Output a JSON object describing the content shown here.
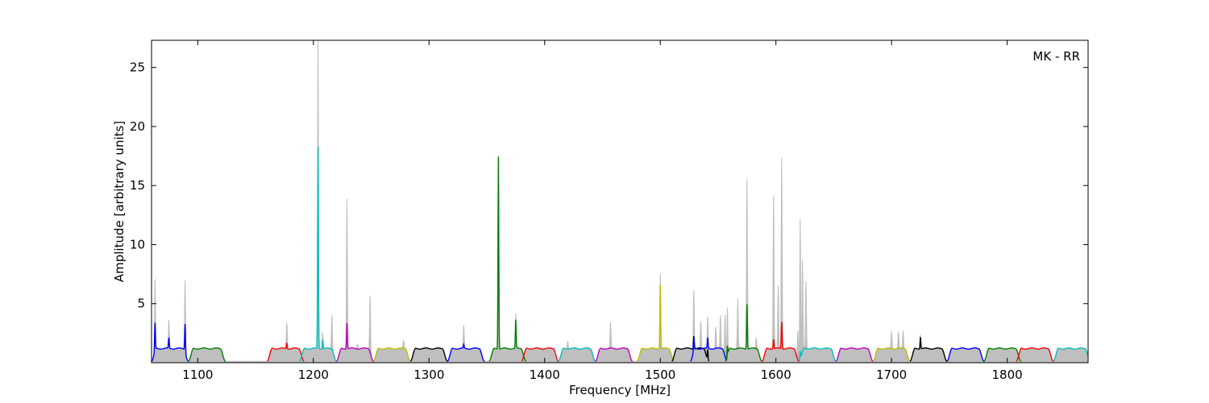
{
  "chart_data": {
    "type": "line",
    "title": "",
    "annotation": "MK - RR",
    "xlabel": "Frequency [MHz]",
    "ylabel": "Amplitude [arbitrary units]",
    "xlim": [
      1060,
      1870
    ],
    "ylim": [
      0,
      27.3
    ],
    "x_ticks": [
      1100,
      1200,
      1300,
      1400,
      1500,
      1600,
      1700,
      1800
    ],
    "y_ticks": [
      5,
      10,
      15,
      20,
      25
    ],
    "grid": false,
    "legend": "none",
    "band_width_mhz": 32,
    "band_starts": [
      1060,
      1092,
      1160,
      1188,
      1220,
      1252,
      1284,
      1316,
      1352,
      1380,
      1412,
      1444,
      1480,
      1510,
      1526,
      1556,
      1588,
      1620,
      1652,
      1684,
      1716,
      1748,
      1780,
      1808,
      1840
    ],
    "band_colors": [
      "#0000ff",
      "#008000",
      "#ff0000",
      "#00bfbf",
      "#bf00bf",
      "#bfbf00",
      "#000000",
      "#0000ff",
      "#008000",
      "#ff0000",
      "#00bfbf",
      "#bf00bf",
      "#bfbf00",
      "#000000",
      "#0000ff",
      "#008000",
      "#ff0000",
      "#00bfbf",
      "#bf00bf",
      "#bfbf00",
      "#000000",
      "#0000ff",
      "#008000",
      "#ff0000",
      "#00bfbf"
    ],
    "baseline_level": 1.2,
    "gray_raw_peaks": [
      {
        "x": 1063,
        "y": 7.3
      },
      {
        "x": 1075,
        "y": 3.6
      },
      {
        "x": 1089,
        "y": 7.3
      },
      {
        "x": 1177,
        "y": 3.4
      },
      {
        "x": 1204,
        "y": 27.3
      },
      {
        "x": 1208,
        "y": 2.6
      },
      {
        "x": 1216,
        "y": 4.1
      },
      {
        "x": 1229,
        "y": 13.9
      },
      {
        "x": 1238,
        "y": 1.6
      },
      {
        "x": 1249,
        "y": 6.0
      },
      {
        "x": 1278,
        "y": 1.9
      },
      {
        "x": 1330,
        "y": 3.1
      },
      {
        "x": 1360,
        "y": 17.6
      },
      {
        "x": 1375,
        "y": 4.1
      },
      {
        "x": 1420,
        "y": 1.9
      },
      {
        "x": 1457,
        "y": 3.4
      },
      {
        "x": 1500,
        "y": 7.6
      },
      {
        "x": 1529,
        "y": 6.2
      },
      {
        "x": 1535,
        "y": 3.5
      },
      {
        "x": 1541,
        "y": 3.9
      },
      {
        "x": 1548,
        "y": 3.0
      },
      {
        "x": 1552,
        "y": 4.0
      },
      {
        "x": 1556,
        "y": 4.7
      },
      {
        "x": 1558,
        "y": 5.2
      },
      {
        "x": 1567,
        "y": 5.4
      },
      {
        "x": 1575,
        "y": 15.6
      },
      {
        "x": 1583,
        "y": 2.1
      },
      {
        "x": 1598,
        "y": 14.2
      },
      {
        "x": 1602,
        "y": 6.5
      },
      {
        "x": 1605,
        "y": 17.4
      },
      {
        "x": 1619,
        "y": 3.7
      },
      {
        "x": 1621,
        "y": 13.1
      },
      {
        "x": 1623,
        "y": 9.0
      },
      {
        "x": 1626,
        "y": 6.9
      },
      {
        "x": 1700,
        "y": 2.7
      },
      {
        "x": 1706,
        "y": 2.6
      },
      {
        "x": 1710,
        "y": 2.7
      },
      {
        "x": 1725,
        "y": 2.4
      }
    ],
    "series_peaks": [
      {
        "x": 1063,
        "y": 3.6,
        "color": "#0000ff"
      },
      {
        "x": 1075,
        "y": 2.1,
        "color": "#0000ff"
      },
      {
        "x": 1089,
        "y": 3.6,
        "color": "#0000ff"
      },
      {
        "x": 1177,
        "y": 1.7,
        "color": "#00bfbf"
      },
      {
        "x": 1204,
        "y": 18.3,
        "color": "#bf00bf"
      },
      {
        "x": 1208,
        "y": 2.0,
        "color": "#bf00bf"
      },
      {
        "x": 1229,
        "y": 3.4,
        "color": "#bfbf00"
      },
      {
        "x": 1330,
        "y": 1.5,
        "color": "#008000"
      },
      {
        "x": 1360,
        "y": 17.5,
        "color": "#ff0000"
      },
      {
        "x": 1375,
        "y": 3.6,
        "color": "#ff0000"
      },
      {
        "x": 1500,
        "y": 6.6,
        "color": "#000000"
      },
      {
        "x": 1529,
        "y": 2.3,
        "color": "#0000ff"
      },
      {
        "x": 1541,
        "y": 2.1,
        "color": "#0000ff"
      },
      {
        "x": 1558,
        "y": 2.0,
        "color": "#008000"
      },
      {
        "x": 1575,
        "y": 5.0,
        "color": "#008000"
      },
      {
        "x": 1598,
        "y": 2.0,
        "color": "#ff0000"
      },
      {
        "x": 1605,
        "y": 3.5,
        "color": "#ff0000"
      },
      {
        "x": 1621,
        "y": 1.9,
        "color": "#00bfbf"
      },
      {
        "x": 1725,
        "y": 2.2,
        "color": "#000000"
      }
    ]
  }
}
